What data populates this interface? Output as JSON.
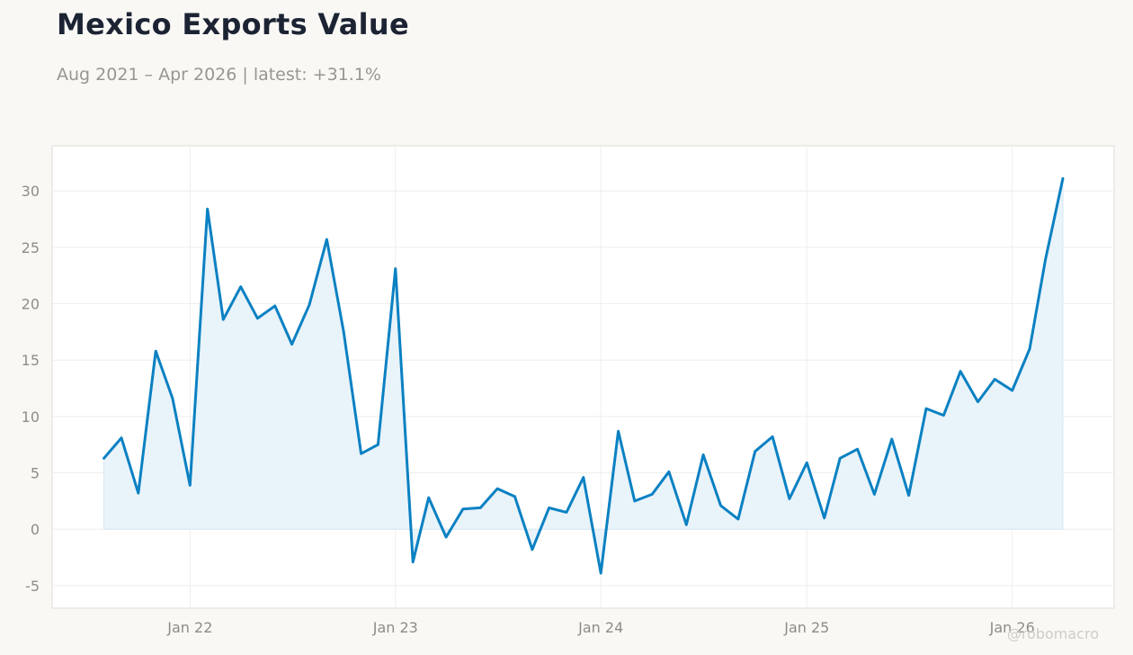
{
  "title": "Mexico Exports Value",
  "subtitle": "Aug 2021 – Apr 2026 | latest: +31.1%",
  "watermark": "@robomacro",
  "colors": {
    "background": "#f9f8f5",
    "plot_background": "#ffffff",
    "line": "#0a81c2",
    "area_fill": "#e9f3fa",
    "grid": "#efeeeb",
    "tick_text": "#8f8c87"
  },
  "chart_data": {
    "type": "line",
    "title": "Mexico Exports Value",
    "subtitle": "Aug 2021 – Apr 2026 | latest: +31.1%",
    "xlabel": "",
    "ylabel": "",
    "fill_area": true,
    "grid": true,
    "ylim": [
      -7,
      34
    ],
    "xlim": [
      "2021-05-01",
      "2026-07-01"
    ],
    "yticks": [
      -5,
      0,
      5,
      10,
      15,
      20,
      25,
      30
    ],
    "ytick_labels": [
      "-5",
      "0",
      "5",
      "10",
      "15",
      "20",
      "25",
      "30"
    ],
    "xticks": [
      "2022-01-01",
      "2023-01-01",
      "2024-01-01",
      "2025-01-01",
      "2026-01-01"
    ],
    "xtick_labels": [
      "Jan 22",
      "Jan 23",
      "Jan 24",
      "Jan 25",
      "Jan 26"
    ],
    "series": [
      {
        "x": [
          "2021-08",
          "2021-09",
          "2021-10",
          "2021-11",
          "2021-12",
          "2022-01",
          "2022-02",
          "2022-03",
          "2022-04",
          "2022-05",
          "2022-06",
          "2022-07",
          "2022-08",
          "2022-09",
          "2022-10",
          "2022-11",
          "2022-12",
          "2023-01",
          "2023-02",
          "2023-03",
          "2023-04",
          "2023-05",
          "2023-06",
          "2023-07",
          "2023-08",
          "2023-09",
          "2023-10",
          "2023-11",
          "2023-12",
          "2024-01",
          "2024-02",
          "2024-03",
          "2024-04",
          "2024-05",
          "2024-06",
          "2024-07",
          "2024-08",
          "2024-09",
          "2024-10",
          "2024-11",
          "2024-12",
          "2025-01",
          "2025-02",
          "2025-03",
          "2025-04",
          "2025-05",
          "2025-06",
          "2025-07",
          "2025-08",
          "2025-09",
          "2025-10",
          "2025-11",
          "2025-12",
          "2026-01",
          "2026-02",
          "2026-03",
          "2026-04"
        ],
        "values": [
          6.3,
          8.1,
          3.2,
          15.8,
          11.6,
          3.9,
          28.4,
          18.6,
          21.5,
          18.7,
          19.8,
          16.4,
          19.9,
          25.7,
          17.5,
          6.7,
          7.5,
          23.1,
          -2.9,
          2.8,
          -0.7,
          1.8,
          1.9,
          3.6,
          2.9,
          -1.8,
          1.9,
          1.5,
          4.6,
          -3.9,
          8.7,
          2.5,
          3.1,
          5.1,
          0.4,
          6.6,
          2.1,
          0.9,
          6.9,
          8.2,
          2.7,
          5.9,
          1.0,
          6.3,
          7.1,
          3.1,
          8.0,
          3.0,
          10.7,
          10.1,
          14.0,
          11.3,
          13.3,
          12.3,
          16.0,
          23.9,
          31.1
        ]
      }
    ]
  }
}
